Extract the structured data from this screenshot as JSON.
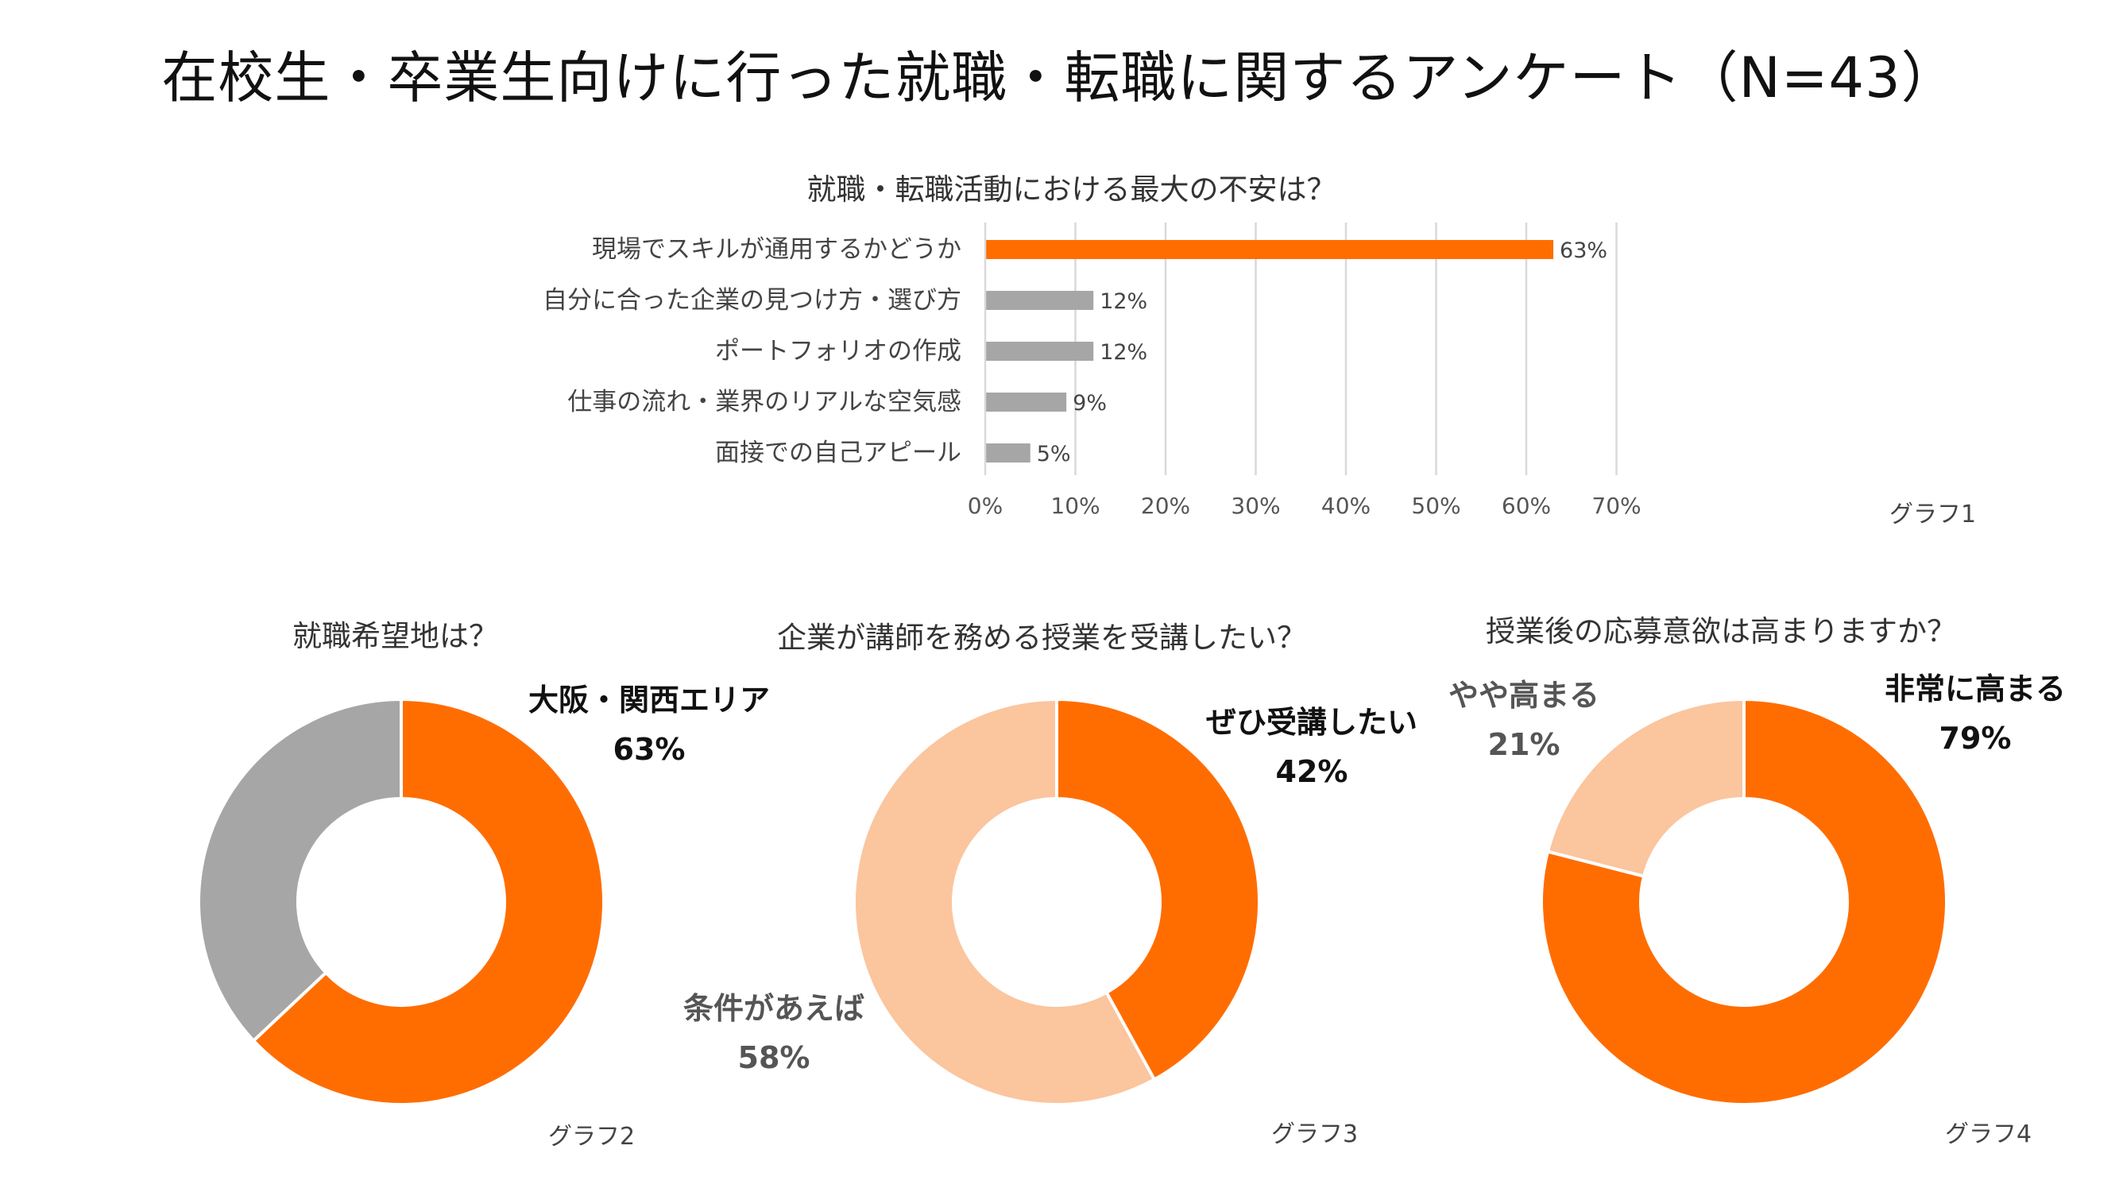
{
  "main_title": "在校生・卒業生向けに行った就職・転職に関するアンケート（N=43）",
  "colors": {
    "orange": "#FF6D01",
    "gray": "#A6A6A6",
    "peach": "#FBC59E",
    "grid": "#D9D9D9"
  },
  "chart_data": [
    {
      "type": "bar",
      "orientation": "horizontal",
      "title": "就職・転職活動における最大の不安は？",
      "graph_label": "グラフ1",
      "categories": [
        "現場でスキルが通用するかどうか",
        "自分に合った企業の見つけ方・選び方",
        "ポートフォリオの作成",
        "仕事の流れ・業界のリアルな空気感",
        "面接での自己アピール"
      ],
      "values": [
        63,
        12,
        12,
        9,
        5
      ],
      "value_labels": [
        "63%",
        "12%",
        "12%",
        "9%",
        "5%"
      ],
      "highlight_index": 0,
      "xlim": [
        0,
        70
      ],
      "xticks": [
        "0%",
        "10%",
        "20%",
        "30%",
        "40%",
        "50%",
        "60%",
        "70%"
      ],
      "grid": true
    },
    {
      "type": "pie",
      "donut": true,
      "title": "就職希望地は？",
      "graph_label": "グラフ2",
      "slices": [
        {
          "label": "大阪・関西エリア",
          "value": 63,
          "pct_label": "63%",
          "color": "#FF6D01"
        },
        {
          "label": "",
          "value": 37,
          "pct_label": "",
          "color": "#A6A6A6"
        }
      ]
    },
    {
      "type": "pie",
      "donut": true,
      "title": "企業が講師を務める授業を受講したい？",
      "graph_label": "グラフ3",
      "slices": [
        {
          "label": "ぜひ受講したい",
          "value": 42,
          "pct_label": "42%",
          "color": "#FF6D01"
        },
        {
          "label": "条件があえば",
          "value": 58,
          "pct_label": "58%",
          "color": "#FBC59E"
        }
      ]
    },
    {
      "type": "pie",
      "donut": true,
      "title": "授業後の応募意欲は高まりますか？",
      "graph_label": "グラフ4",
      "slices": [
        {
          "label": "非常に高まる",
          "value": 79,
          "pct_label": "79%",
          "color": "#FF6D01"
        },
        {
          "label": "やや高まる",
          "value": 21,
          "pct_label": "21%",
          "color": "#FBC59E"
        }
      ]
    }
  ]
}
